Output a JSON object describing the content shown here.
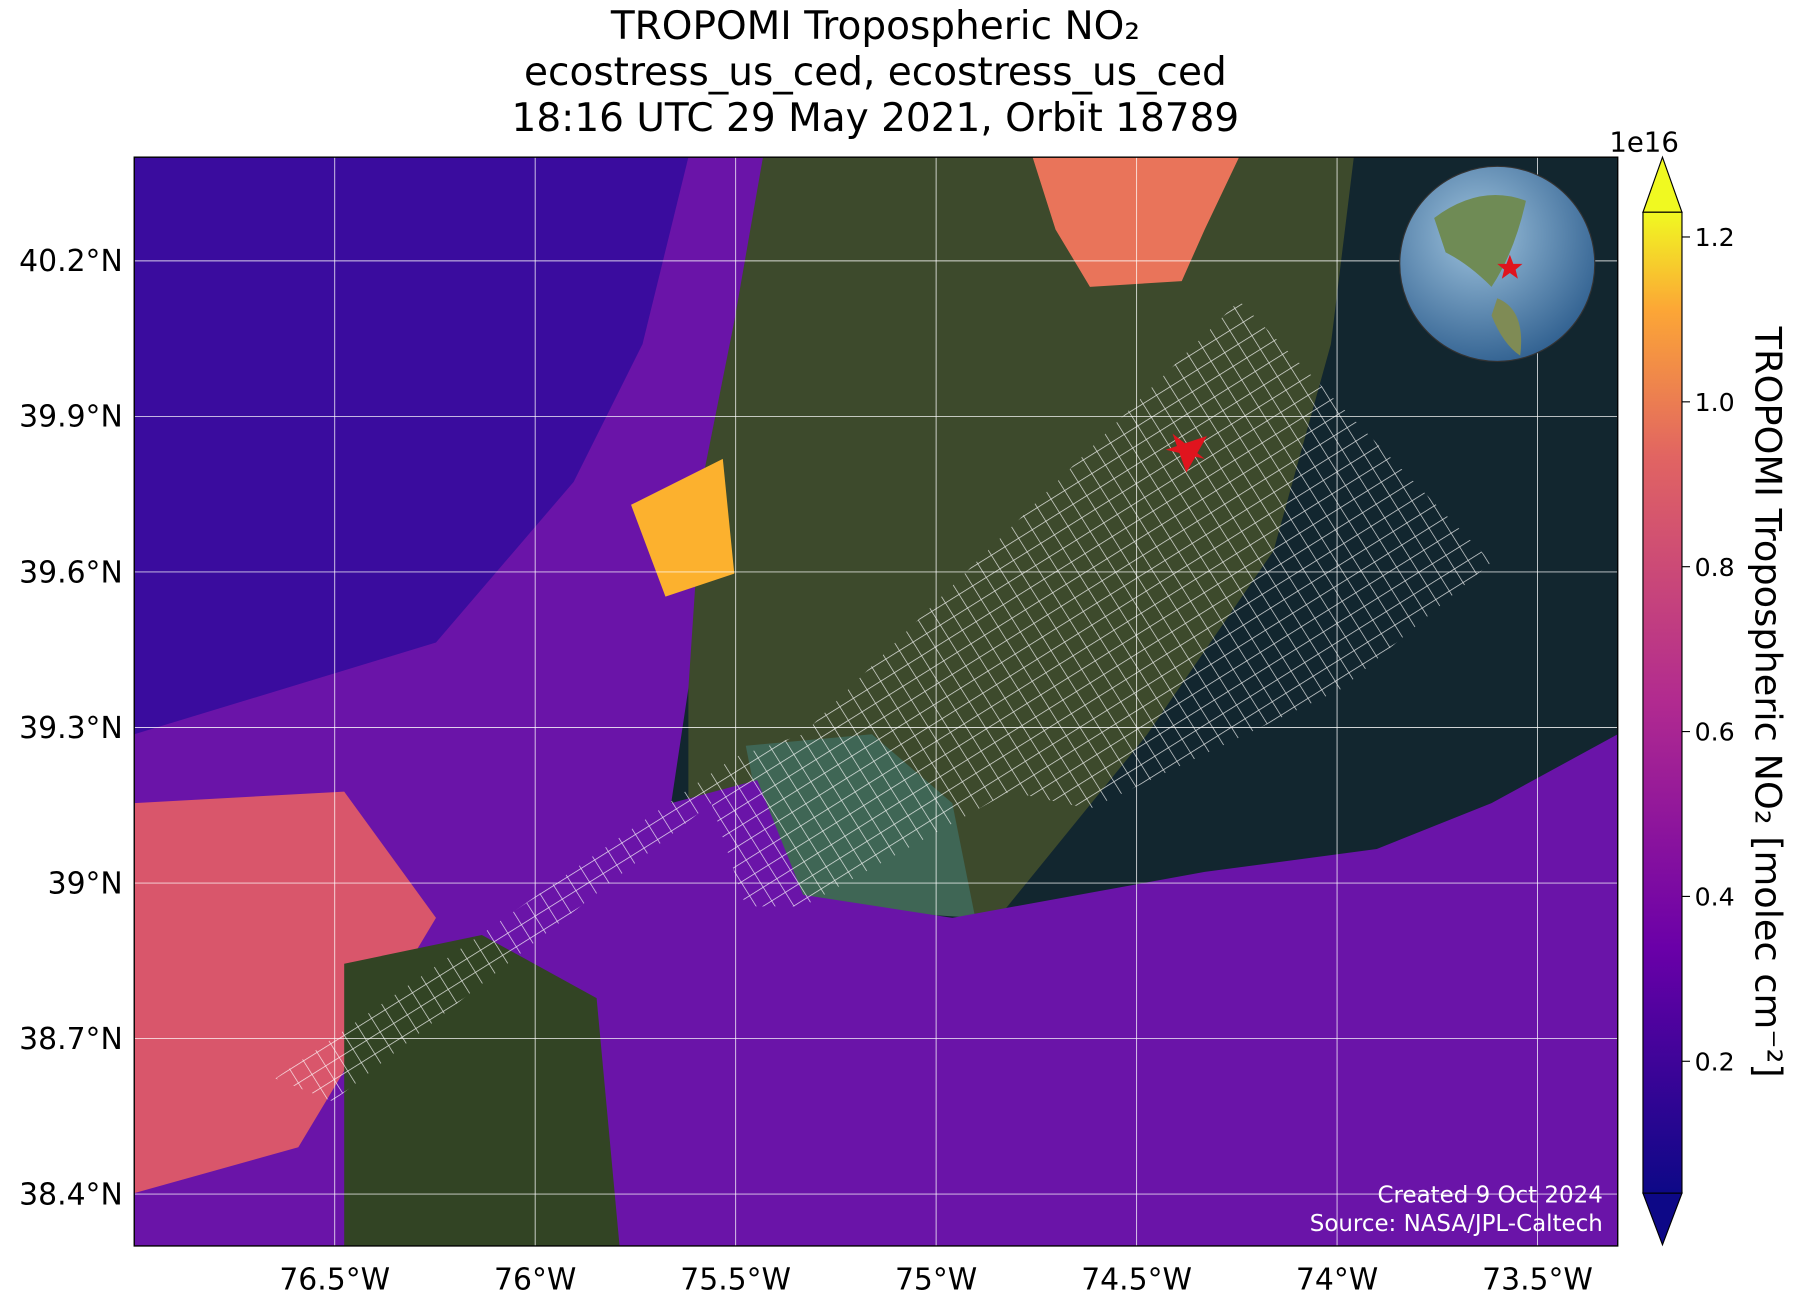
{
  "title": [
    "TROPOMI Tropospheric NO₂",
    "ecostress_us_ced, ecostress_us_ced",
    "18:16 UTC 29 May 2021, Orbit 18789"
  ],
  "map": {
    "xlim": [
      -77.0,
      -73.3
    ],
    "ylim": [
      38.3,
      40.4
    ],
    "xticks": [
      {
        "value": -76.5,
        "label": "76.5°W"
      },
      {
        "value": -76,
        "label": "76°W"
      },
      {
        "value": -75.5,
        "label": "75.5°W"
      },
      {
        "value": -75,
        "label": "75°W"
      },
      {
        "value": -74.5,
        "label": "74.5°W"
      },
      {
        "value": -74,
        "label": "74°W"
      },
      {
        "value": -73.5,
        "label": "73.5°W"
      }
    ],
    "yticks": [
      {
        "value": 38.4,
        "label": "38.4°N"
      },
      {
        "value": 38.7,
        "label": "38.7°N"
      },
      {
        "value": 39,
        "label": "39°N"
      },
      {
        "value": 39.3,
        "label": "39.3°N"
      },
      {
        "value": 39.6,
        "label": "39.6°N"
      },
      {
        "value": 39.9,
        "label": "39.9°N"
      },
      {
        "value": 40.2,
        "label": "40.2°N"
      }
    ],
    "grid": true
  },
  "colorbar": {
    "label": "TROPOMI Tropospheric NO₂ [molec cm⁻²]",
    "exponent": "1e16",
    "lim": [
      0.04,
      1.23
    ],
    "ticks": [
      0.2,
      0.4,
      0.6,
      0.8,
      {
        "value": 1,
        "label": "1.0"
      },
      1.2
    ]
  },
  "credits": [
    "Created 9 Oct 2024",
    "Source: NASA/JPL-Caltech"
  ]
}
